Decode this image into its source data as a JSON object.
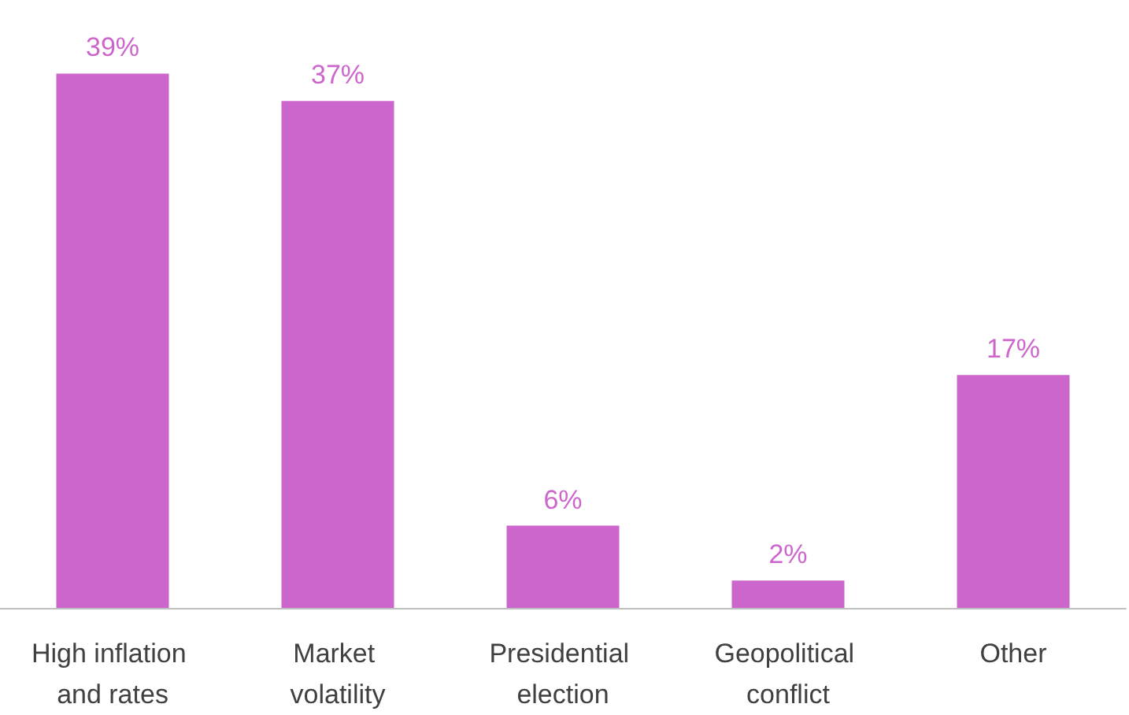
{
  "chart_data": {
    "type": "bar",
    "categories": [
      "High inflation and rates",
      "Market volatility",
      "Presidential election",
      "Geopolitical conflict",
      "Other"
    ],
    "values": [
      39,
      37,
      6,
      2,
      17
    ],
    "value_labels": [
      "39%",
      "37%",
      "6%",
      "2%",
      "17%"
    ],
    "color": "#cc66cc"
  }
}
